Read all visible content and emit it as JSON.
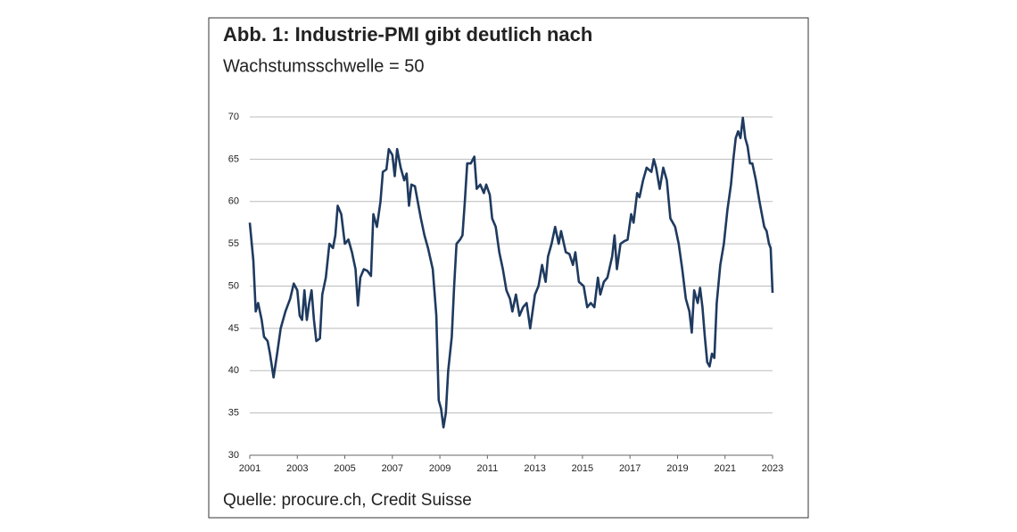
{
  "chart_data": {
    "type": "line",
    "title": "Abb. 1: Industrie-PMI gibt deutlich nach",
    "subtitle": "Wachstumsschwelle = 50",
    "source": "Quelle: procure.ch, Credit Suisse",
    "x": [
      2001.0,
      2001.15,
      2001.25,
      2001.35,
      2001.5,
      2001.6,
      2001.75,
      2001.85,
      2002.0,
      2002.15,
      2002.3,
      2002.5,
      2002.7,
      2002.85,
      2003.0,
      2003.1,
      2003.2,
      2003.3,
      2003.4,
      2003.5,
      2003.6,
      2003.7,
      2003.8,
      2003.95,
      2004.05,
      2004.2,
      2004.35,
      2004.5,
      2004.6,
      2004.7,
      2004.85,
      2005.0,
      2005.15,
      2005.3,
      2005.45,
      2005.55,
      2005.65,
      2005.8,
      2005.95,
      2006.1,
      2006.2,
      2006.35,
      2006.5,
      2006.6,
      2006.75,
      2006.85,
      2007.0,
      2007.1,
      2007.2,
      2007.35,
      2007.5,
      2007.6,
      2007.7,
      2007.8,
      2007.95,
      2008.1,
      2008.2,
      2008.35,
      2008.5,
      2008.7,
      2008.85,
      2008.95,
      2009.05,
      2009.15,
      2009.25,
      2009.35,
      2009.5,
      2009.6,
      2009.7,
      2009.85,
      2009.95,
      2010.05,
      2010.15,
      2010.3,
      2010.45,
      2010.55,
      2010.7,
      2010.85,
      2010.95,
      2011.1,
      2011.2,
      2011.35,
      2011.5,
      2011.65,
      2011.8,
      2011.95,
      2012.05,
      2012.2,
      2012.35,
      2012.5,
      2012.65,
      2012.8,
      2013.0,
      2013.15,
      2013.3,
      2013.45,
      2013.55,
      2013.7,
      2013.85,
      2014.0,
      2014.1,
      2014.3,
      2014.45,
      2014.6,
      2014.7,
      2014.85,
      2015.05,
      2015.2,
      2015.35,
      2015.5,
      2015.65,
      2015.75,
      2015.9,
      2016.05,
      2016.25,
      2016.35,
      2016.45,
      2016.6,
      2016.75,
      2016.9,
      2017.05,
      2017.15,
      2017.3,
      2017.4,
      2017.55,
      2017.7,
      2017.9,
      2018.0,
      2018.1,
      2018.25,
      2018.4,
      2018.55,
      2018.7,
      2018.9,
      2019.05,
      2019.2,
      2019.35,
      2019.5,
      2019.6,
      2019.7,
      2019.85,
      2019.95,
      2020.05,
      2020.15,
      2020.25,
      2020.35,
      2020.45,
      2020.55,
      2020.65,
      2020.8,
      2020.95,
      2021.1,
      2021.25,
      2021.35,
      2021.45,
      2021.55,
      2021.65,
      2021.75,
      2021.85,
      2021.95,
      2022.05,
      2022.15,
      2022.3,
      2022.45,
      2022.55,
      2022.65,
      2022.75,
      2022.85,
      2022.92,
      2023.0
    ],
    "series": [
      {
        "color": "#1f3a5f",
        "values": [
          57.5,
          53,
          47,
          48,
          46,
          44,
          43.5,
          42,
          39.2,
          42,
          45,
          47,
          48.5,
          50.3,
          49.5,
          46.5,
          46,
          49.5,
          46,
          48,
          49.5,
          46,
          43.5,
          43.8,
          49,
          51,
          55,
          54.5,
          56,
          59.5,
          58.5,
          55,
          55.5,
          54,
          52,
          47.7,
          51,
          52,
          51.8,
          51.2,
          58.5,
          57,
          60,
          63.5,
          63.8,
          66.2,
          65.5,
          63,
          66.2,
          64,
          62.5,
          63.3,
          59.5,
          62,
          61.8,
          59.5,
          58,
          56,
          54.5,
          52,
          46.5,
          36.5,
          35.5,
          33.3,
          35,
          40,
          44,
          50,
          55,
          55.5,
          56,
          60,
          64.5,
          64.5,
          65.3,
          61.5,
          62,
          61,
          62,
          60.8,
          58,
          57,
          54,
          52,
          49.5,
          48.5,
          47,
          49,
          46.5,
          47.5,
          48,
          45,
          49,
          50,
          52.5,
          50.5,
          53.5,
          55,
          57,
          55,
          56.5,
          54,
          53.8,
          52.5,
          54,
          50.5,
          50,
          47.5,
          48,
          47.5,
          51,
          49,
          50.5,
          51,
          53.5,
          56,
          52,
          55,
          55.3,
          55.5,
          58.5,
          57.5,
          61,
          60.5,
          62.5,
          64,
          63.5,
          65,
          64,
          61.5,
          64,
          62.5,
          58,
          57,
          55,
          52,
          48.5,
          47,
          44.5,
          49.5,
          48,
          49.8,
          47.5,
          44,
          41,
          40.5,
          42,
          41.5,
          48,
          52.5,
          55,
          59,
          62,
          65,
          67.5,
          68.3,
          67.5,
          69.9,
          67.5,
          66.5,
          64.5,
          64.5,
          62.5,
          60,
          58.5,
          57,
          56.5,
          55,
          54.5,
          49.2
        ]
      }
    ],
    "xlim": [
      2001,
      2023
    ],
    "xticks": [
      2001,
      2003,
      2005,
      2007,
      2009,
      2011,
      2013,
      2015,
      2017,
      2019,
      2021,
      2023
    ],
    "ylim": [
      30,
      70
    ],
    "yticks": [
      30,
      35,
      40,
      45,
      50,
      55,
      60,
      65,
      70
    ],
    "grid": true
  }
}
